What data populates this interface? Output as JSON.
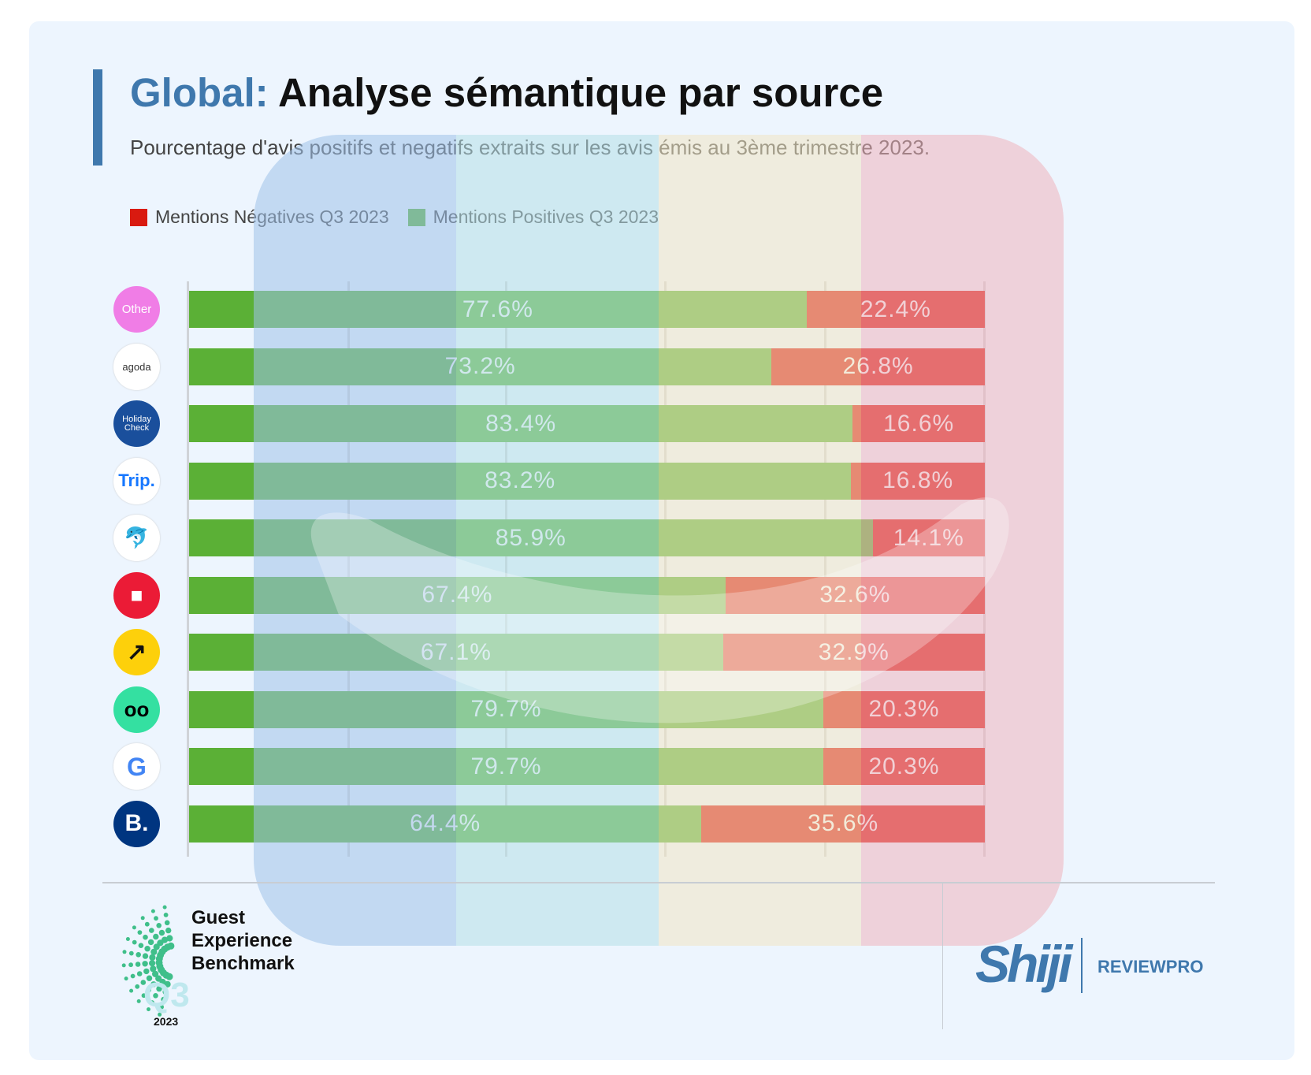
{
  "header": {
    "title_prefix": "Global:",
    "title": "Analyse sémantique par source",
    "subtitle": "Pourcentage d'avis positifs et negatifs extraits sur les avis émis au 3ème trimestre 2023."
  },
  "colors": {
    "positive": "#5bb036",
    "negative": "#d91a10",
    "accent": "#3f78ad"
  },
  "chart_data": {
    "type": "bar",
    "stacked": true,
    "orientation": "horizontal",
    "title": "Global: Analyse sémantique par source",
    "legend": [
      {
        "name": "Mentions Négatives Q3 2023",
        "color": "#d91a10"
      },
      {
        "name": "Mentions Positives Q3 2023",
        "color": "#5bb036"
      }
    ],
    "legend_placement": "top-left",
    "categories": [
      "Other",
      "Agoda",
      "HolidayCheck",
      "Trip.com",
      "Ctrip",
      "Hotels.com",
      "Expedia",
      "Tripadvisor",
      "Google",
      "Booking.com"
    ],
    "series": [
      {
        "name": "Mentions Positives Q3 2023",
        "values": [
          77.6,
          73.2,
          83.4,
          83.2,
          85.9,
          67.4,
          67.1,
          79.7,
          79.7,
          64.4
        ],
        "labels": [
          "77.6%",
          "73.2%",
          "83.4%",
          "83.2%",
          "85.9%",
          "67.4%",
          "67.1%",
          "79.7%",
          "79.7%",
          "64.4%"
        ]
      },
      {
        "name": "Mentions Négatives Q3 2023",
        "values": [
          22.4,
          26.8,
          16.6,
          16.8,
          14.1,
          32.6,
          32.9,
          20.3,
          20.3,
          35.6
        ],
        "labels": [
          "22.4%",
          "26.8%",
          "16.6%",
          "16.8%",
          "14.1%",
          "32.6%",
          "32.9%",
          "20.3%",
          "20.3%",
          "35.6%"
        ]
      }
    ],
    "xlim": [
      0,
      100
    ]
  },
  "logos": [
    "Other",
    "agoda",
    "Holiday Check",
    "Trip.",
    "",
    "",
    "",
    "",
    "G",
    "B."
  ],
  "footer": {
    "benchmark": [
      "Guest",
      "Experience",
      "Benchmark"
    ],
    "quarter": "Q3",
    "year": "2023",
    "brand": "Shiji",
    "product": "REVIEWPRO"
  }
}
